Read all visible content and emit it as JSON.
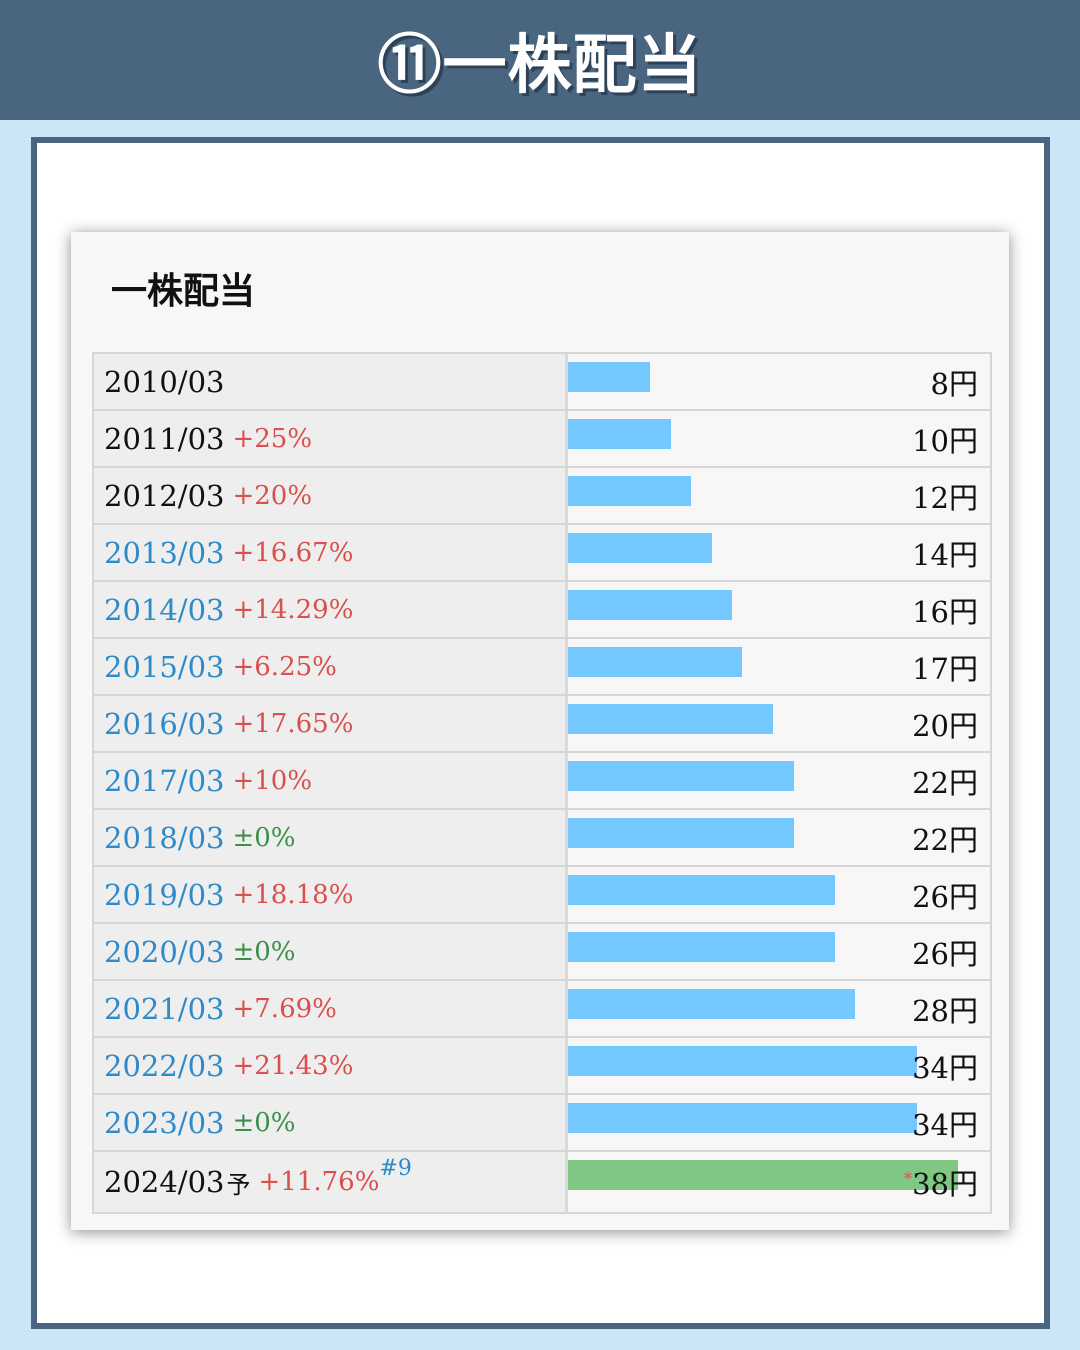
{
  "header": {
    "title": "⑪一株配当"
  },
  "card": {
    "title": "一株配当"
  },
  "forecast": {
    "marker": "予",
    "note": "#9",
    "value_prefix": "*"
  },
  "chart_data": {
    "type": "bar",
    "orientation": "horizontal",
    "title": "一株配当",
    "unit": "円",
    "xlim": [
      0,
      40
    ],
    "colors": {
      "actual": "#75c8ff",
      "forecast": "#80c784",
      "increase": "#d9504c",
      "flat": "#3c8f4a",
      "period_blue": "#2f8bc8"
    },
    "rows": [
      {
        "period": "2010/03",
        "change": "",
        "value": 8,
        "value_label": "8円"
      },
      {
        "period": "2011/03",
        "change": "+25%",
        "value": 10,
        "value_label": "10円"
      },
      {
        "period": "2012/03",
        "change": "+20%",
        "value": 12,
        "value_label": "12円"
      },
      {
        "period": "2013/03",
        "change": "+16.67%",
        "value": 14,
        "value_label": "14円"
      },
      {
        "period": "2014/03",
        "change": "+14.29%",
        "value": 16,
        "value_label": "16円"
      },
      {
        "period": "2015/03",
        "change": "+6.25%",
        "value": 17,
        "value_label": "17円"
      },
      {
        "period": "2016/03",
        "change": "+17.65%",
        "value": 20,
        "value_label": "20円"
      },
      {
        "period": "2017/03",
        "change": "+10%",
        "value": 22,
        "value_label": "22円"
      },
      {
        "period": "2018/03",
        "change": "±0%",
        "value": 22,
        "value_label": "22円"
      },
      {
        "period": "2019/03",
        "change": "+18.18%",
        "value": 26,
        "value_label": "26円"
      },
      {
        "period": "2020/03",
        "change": "±0%",
        "value": 26,
        "value_label": "26円"
      },
      {
        "period": "2021/03",
        "change": "+7.69%",
        "value": 28,
        "value_label": "28円"
      },
      {
        "period": "2022/03",
        "change": "+21.43%",
        "value": 34,
        "value_label": "34円"
      },
      {
        "period": "2023/03",
        "change": "±0%",
        "value": 34,
        "value_label": "34円"
      },
      {
        "period": "2024/03",
        "change": "+11.76%",
        "value": 38,
        "value_label": "38円",
        "forecast": true
      }
    ]
  }
}
